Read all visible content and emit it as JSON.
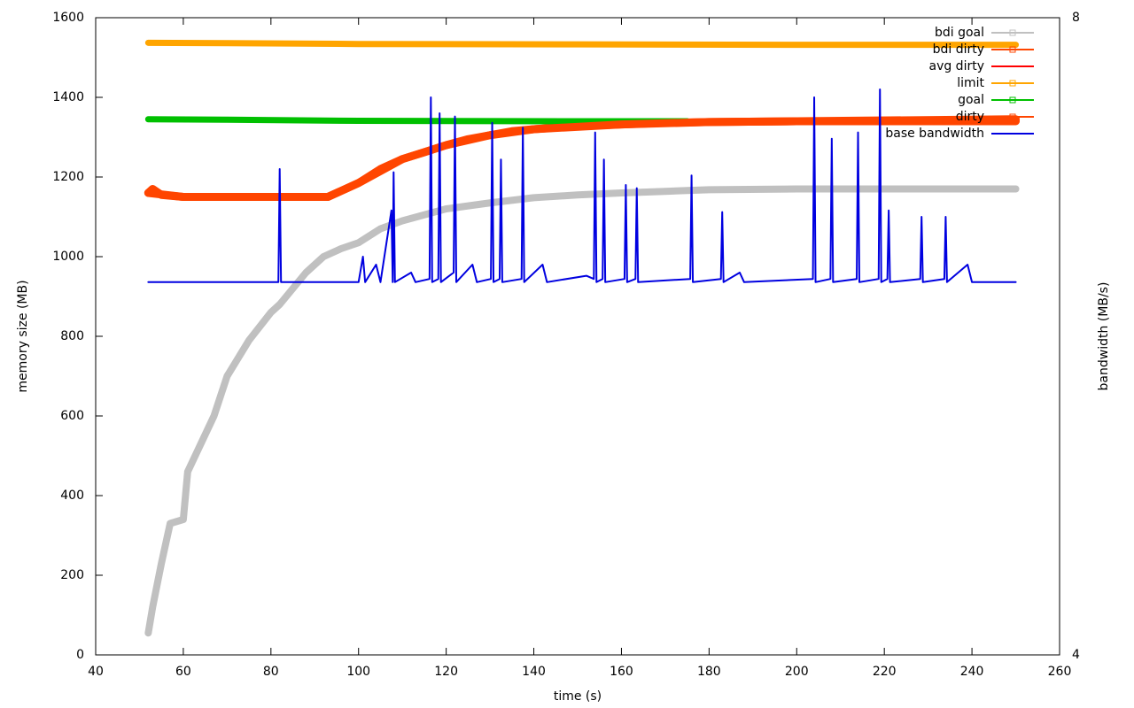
{
  "chart_data": {
    "type": "line",
    "xlabel": "time (s)",
    "ylabel": "memory size (MB)",
    "y2label": "bandwidth (MB/s)",
    "xlim": [
      40,
      260
    ],
    "xticks": [
      40,
      60,
      80,
      100,
      120,
      140,
      160,
      180,
      200,
      220,
      240,
      260
    ],
    "ylim": [
      0,
      1600
    ],
    "yticks": [
      0,
      200,
      400,
      600,
      800,
      1000,
      1200,
      1400,
      1600
    ],
    "y2lim": [
      4,
      8
    ],
    "y2ticks": [
      4,
      8
    ],
    "legend": "top right",
    "series": [
      {
        "name": "bdi goal",
        "color": "#c0c0c0",
        "width": 8,
        "x": [
          52,
          53,
          55,
          57,
          60,
          61,
          64,
          67,
          70,
          75,
          80,
          82,
          85,
          88,
          92,
          96,
          100,
          105,
          110,
          120,
          130,
          140,
          150,
          160,
          170,
          180,
          200,
          250
        ],
        "values": [
          55,
          120,
          230,
          330,
          340,
          460,
          530,
          600,
          700,
          790,
          860,
          880,
          920,
          960,
          1000,
          1020,
          1035,
          1070,
          1090,
          1120,
          1135,
          1148,
          1155,
          1160,
          1164,
          1168,
          1170,
          1170
        ]
      },
      {
        "name": "bdi dirty",
        "color": "#ff4500",
        "width": 9,
        "x": [
          52,
          53,
          55,
          60,
          93,
          95,
          100,
          105,
          110,
          115,
          120,
          125,
          130,
          135,
          140,
          150,
          160,
          170,
          180,
          200,
          250
        ],
        "values": [
          1160,
          1170,
          1155,
          1150,
          1150,
          1160,
          1185,
          1220,
          1245,
          1262,
          1280,
          1295,
          1305,
          1315,
          1320,
          1328,
          1332,
          1336,
          1338,
          1340,
          1340
        ]
      },
      {
        "name": "avg dirty",
        "color": "#ff0000",
        "width": 2,
        "x": [
          52,
          60,
          93,
          100,
          110,
          120,
          130,
          140,
          160,
          180,
          250
        ],
        "values": [
          1155,
          1150,
          1150,
          1185,
          1245,
          1280,
          1305,
          1320,
          1332,
          1338,
          1340
        ]
      },
      {
        "name": "limit",
        "color": "#ffa500",
        "width": 7,
        "x": [
          52,
          70,
          100,
          150,
          200,
          250
        ],
        "values": [
          1537,
          1536,
          1534,
          1533,
          1532,
          1532
        ]
      },
      {
        "name": "goal",
        "color": "#00c000",
        "width": 7,
        "x": [
          52,
          70,
          100,
          150,
          175
        ],
        "values": [
          1345,
          1344,
          1341,
          1340,
          1340
        ]
      },
      {
        "name": "dirty",
        "color": "#ff4500",
        "width": 9,
        "x": [
          52,
          60,
          93,
          100,
          110,
          120,
          130,
          140,
          160,
          180,
          200,
          250
        ],
        "values": [
          1160,
          1150,
          1150,
          1185,
          1245,
          1280,
          1305,
          1320,
          1332,
          1338,
          1340,
          1345
        ]
      },
      {
        "name": "base bandwidth",
        "color": "#0000e0",
        "width": 2,
        "axis": "y2",
        "x": [
          52,
          81.7,
          82,
          82.3,
          100,
          101,
          101.5,
          104,
          105,
          107.5,
          107.8,
          108,
          108.3,
          112,
          113,
          116.2,
          116.5,
          116.8,
          118.2,
          118.5,
          118.8,
          121.7,
          122,
          122.3,
          126,
          127,
          130.2,
          130.5,
          130.8,
          132.2,
          132.5,
          132.8,
          137.2,
          137.5,
          137.8,
          142,
          143,
          152,
          153.7,
          154,
          154.3,
          155.7,
          156,
          156.3,
          160.7,
          161,
          161.3,
          163.2,
          163.5,
          163.8,
          175.7,
          176,
          176.3,
          182.7,
          183,
          183.3,
          187,
          188,
          203.7,
          204,
          204.3,
          207.7,
          208,
          208.3,
          213.7,
          214,
          214.3,
          218.7,
          219,
          219.3,
          220.7,
          221,
          221.3,
          228.2,
          228.5,
          228.8,
          233.7,
          234,
          234.3,
          239,
          240,
          250
        ],
        "values": [
          6.34,
          6.34,
          7.05,
          6.34,
          6.34,
          6.5,
          6.34,
          6.45,
          6.34,
          6.79,
          6.34,
          7.03,
          6.34,
          6.4,
          6.34,
          6.36,
          7.5,
          6.34,
          6.36,
          7.4,
          6.34,
          6.4,
          7.38,
          6.34,
          6.45,
          6.34,
          6.36,
          7.34,
          6.34,
          6.36,
          7.11,
          6.34,
          6.36,
          7.31,
          6.34,
          6.45,
          6.34,
          6.38,
          6.36,
          7.28,
          6.34,
          6.36,
          7.11,
          6.34,
          6.36,
          6.95,
          6.34,
          6.36,
          6.93,
          6.34,
          6.36,
          7.01,
          6.34,
          6.36,
          6.78,
          6.34,
          6.4,
          6.34,
          6.36,
          7.5,
          6.34,
          6.36,
          7.24,
          6.34,
          6.36,
          7.28,
          6.34,
          6.36,
          7.55,
          6.34,
          6.36,
          6.79,
          6.34,
          6.36,
          6.75,
          6.34,
          6.36,
          6.75,
          6.34,
          6.45,
          6.34,
          6.34
        ]
      }
    ]
  }
}
